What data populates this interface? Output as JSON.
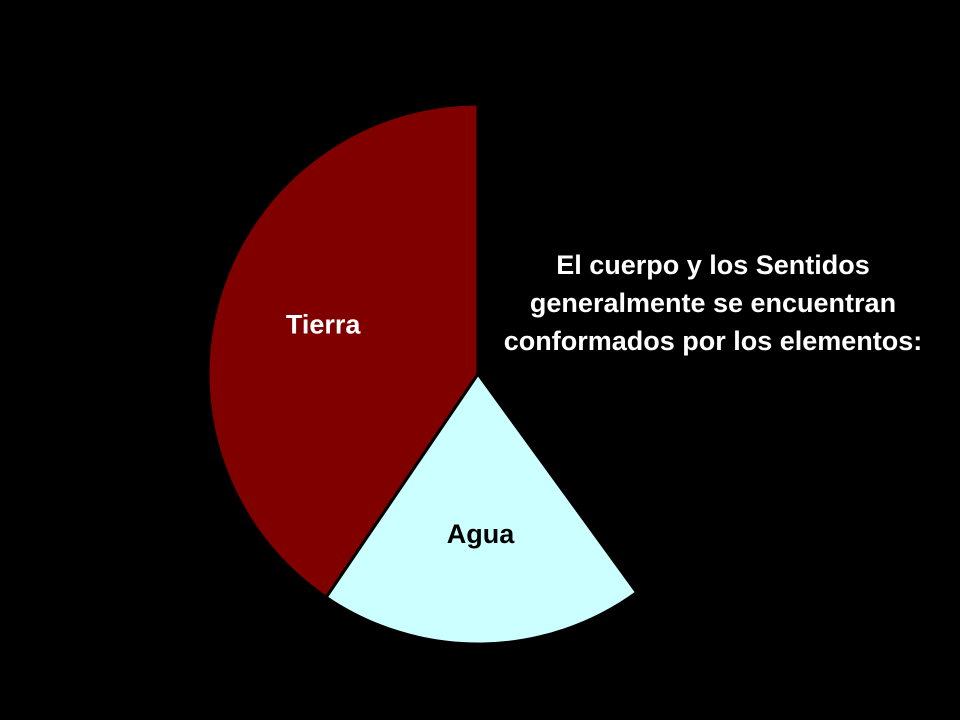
{
  "chart_data": {
    "type": "pie",
    "title": "",
    "annotation": "El cuerpo y los Sentidos generalmente se encuentran conformados por los elementos:",
    "slices": [
      {
        "label": "Tierra",
        "value": 40.5,
        "color": "#800000",
        "label_color": "#ffffff"
      },
      {
        "label": "Agua",
        "value": 19.5,
        "color": "#ccffff",
        "label_color": "#000000"
      }
    ],
    "total": 100,
    "start_angle_deg": 0,
    "direction": "counterclockwise",
    "background": "#000000",
    "slice_border": "#000000"
  }
}
